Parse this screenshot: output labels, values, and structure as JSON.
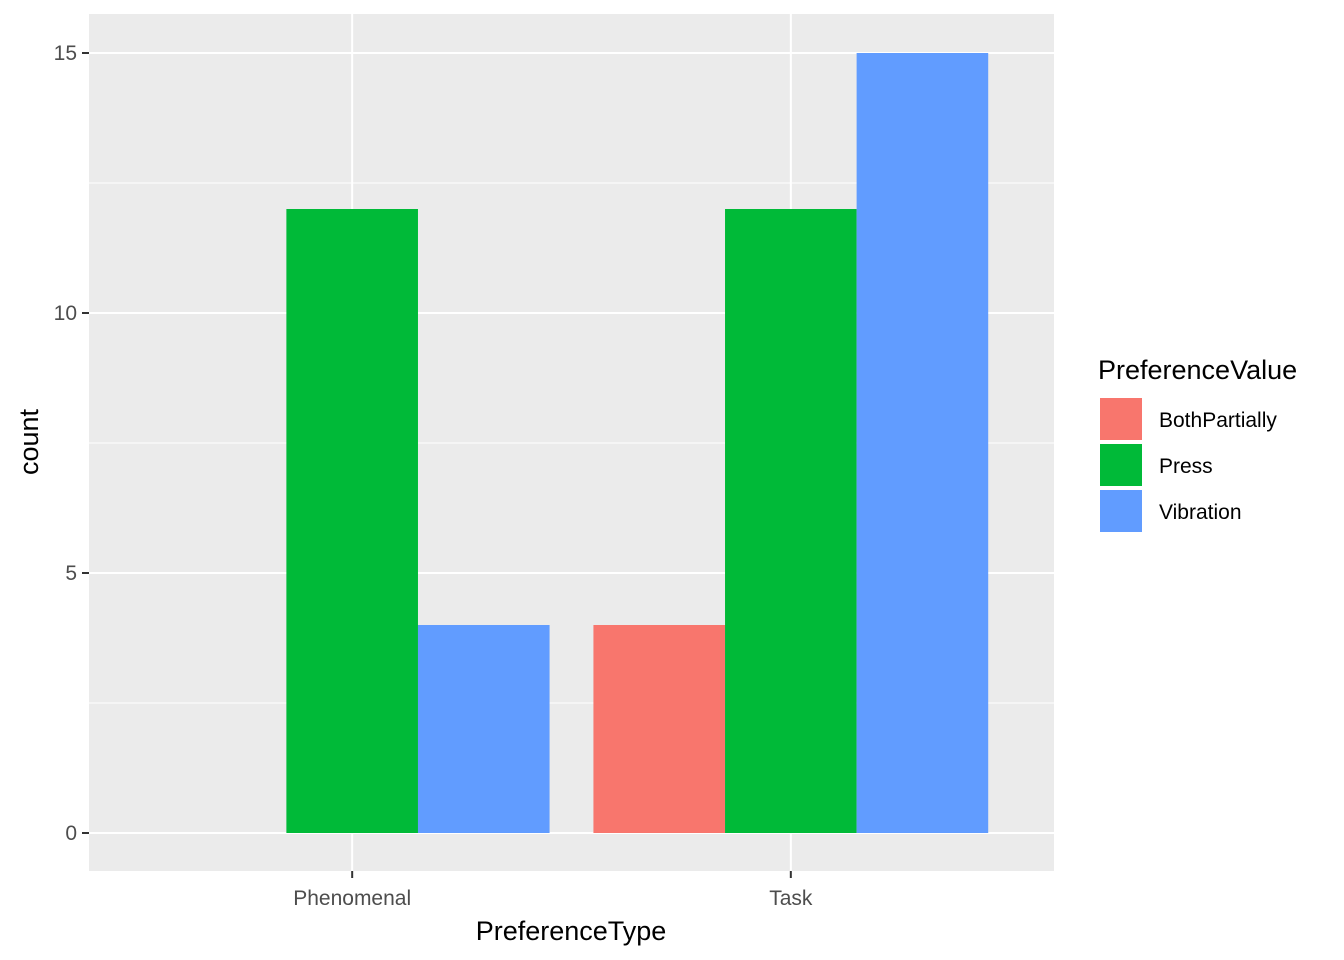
{
  "chart_data": {
    "type": "bar",
    "xlabel": "PreferenceType",
    "ylabel": "count",
    "categories": [
      "Phenomenal",
      "Task"
    ],
    "ylim": [
      -1.5,
      15.75
    ],
    "yticks": [
      0,
      5,
      10,
      15
    ],
    "grid": true,
    "legend": {
      "title": "PreferenceValue",
      "placement": "right"
    },
    "series": [
      {
        "name": "BothPartially",
        "color": "#F8766D",
        "values": [
          null,
          4
        ]
      },
      {
        "name": "Press",
        "color": "#00BA38",
        "values": [
          12,
          12
        ]
      },
      {
        "name": "Vibration",
        "color": "#619CFF",
        "values": [
          4,
          15
        ]
      }
    ],
    "colors": {
      "panel": "#EBEBEB",
      "grid_major": "#FFFFFF",
      "tick": "#333333"
    }
  }
}
